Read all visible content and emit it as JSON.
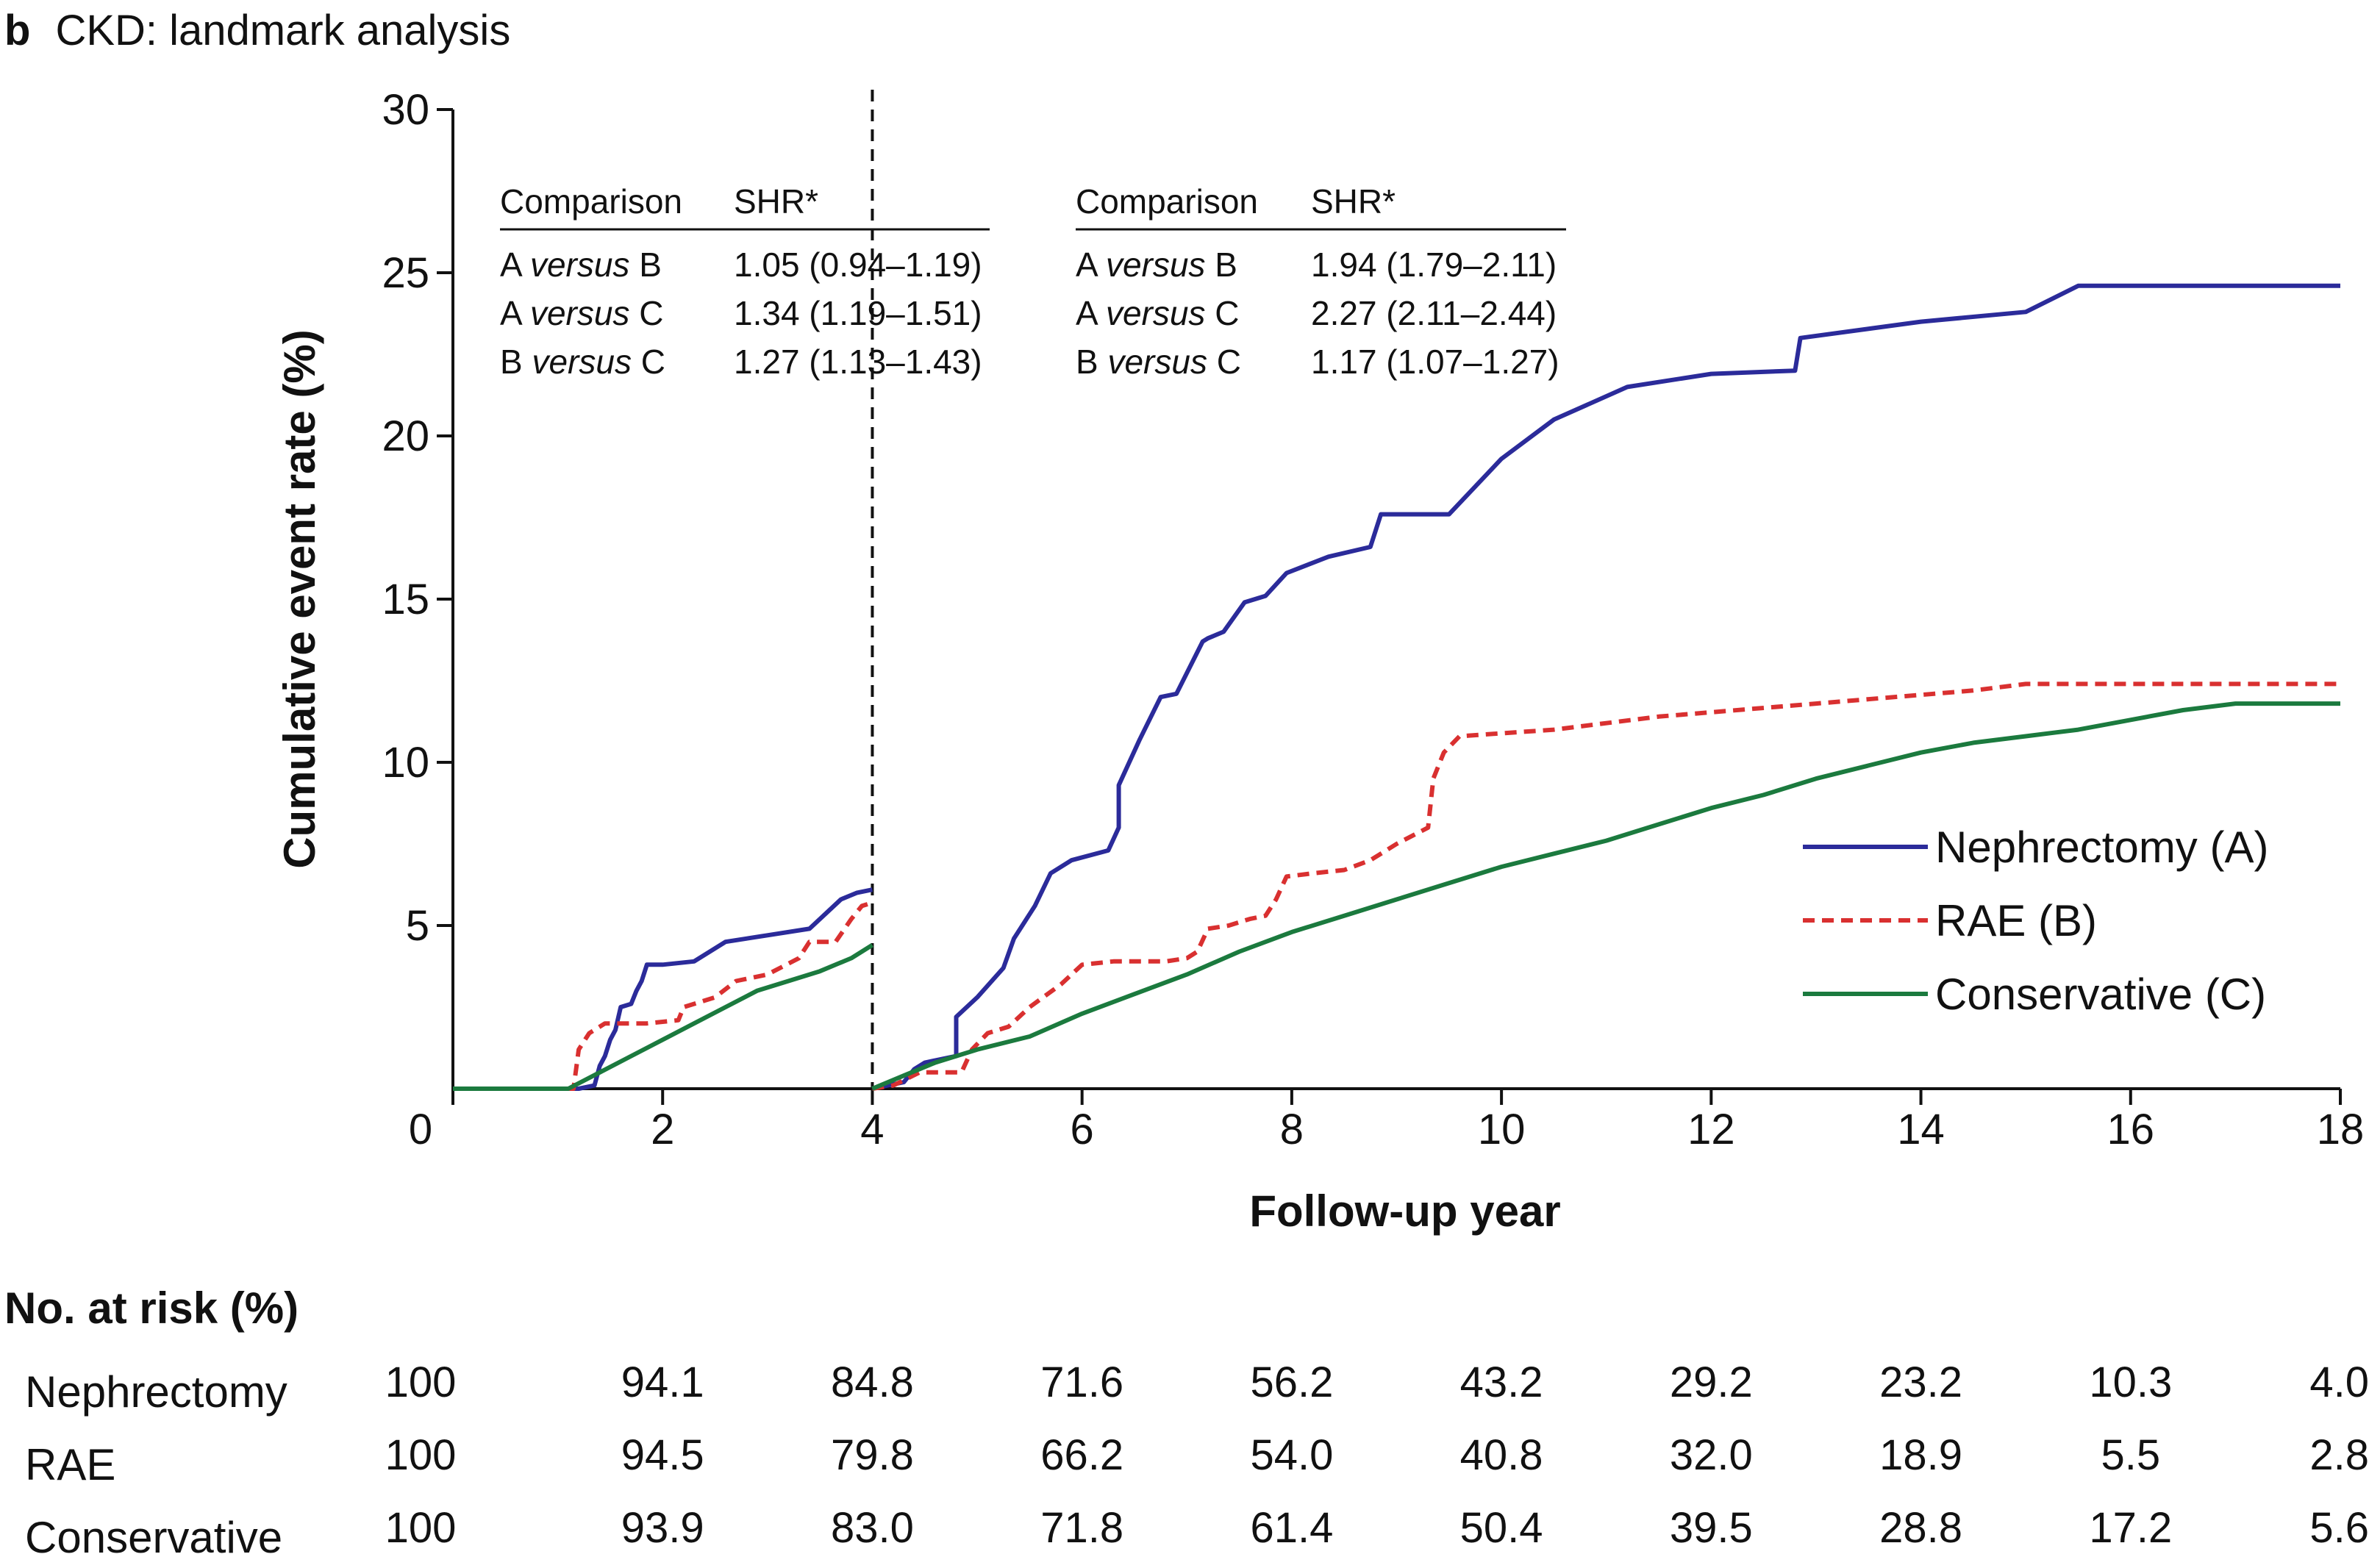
{
  "panel_letter": "b",
  "panel_title": "CKD: landmark analysis",
  "chart_data": {
    "type": "line",
    "title": "CKD: landmark analysis",
    "xlabel": "Follow-up year",
    "ylabel": "Cumulative event rate (%)",
    "xlim": [
      0,
      18
    ],
    "ylim": [
      0,
      30
    ],
    "x_ticks": [
      0,
      2,
      4,
      6,
      8,
      10,
      12,
      14,
      16,
      18
    ],
    "y_ticks": [
      5,
      10,
      15,
      20,
      25,
      30
    ],
    "landmark_x": 4,
    "grid": false,
    "legend_position": "right",
    "series": [
      {
        "name": "Nephrectomy (A)",
        "color": "#2b2b9a",
        "dash": "solid",
        "segments": [
          [
            [
              0,
              0
            ],
            [
              1.2,
              0
            ],
            [
              1.35,
              0.1
            ],
            [
              1.4,
              0.7
            ],
            [
              1.45,
              1.0
            ],
            [
              1.5,
              1.5
            ],
            [
              1.55,
              1.8
            ],
            [
              1.6,
              2.5
            ],
            [
              1.7,
              2.6
            ],
            [
              1.75,
              3.0
            ],
            [
              1.8,
              3.3
            ],
            [
              1.85,
              3.8
            ],
            [
              2.0,
              3.8
            ],
            [
              2.3,
              3.9
            ],
            [
              2.6,
              4.5
            ],
            [
              3.0,
              4.7
            ],
            [
              3.4,
              4.9
            ],
            [
              3.7,
              5.8
            ],
            [
              3.85,
              6.0
            ],
            [
              4.0,
              6.1
            ]
          ],
          [
            [
              4.0,
              0
            ],
            [
              4.3,
              0.2
            ],
            [
              4.4,
              0.6
            ],
            [
              4.5,
              0.8
            ],
            [
              4.8,
              1.0
            ],
            [
              4.8,
              2.2
            ],
            [
              5.0,
              2.8
            ],
            [
              5.25,
              3.7
            ],
            [
              5.35,
              4.6
            ],
            [
              5.55,
              5.6
            ],
            [
              5.7,
              6.6
            ],
            [
              5.9,
              7.0
            ],
            [
              6.25,
              7.3
            ],
            [
              6.35,
              8.0
            ],
            [
              6.35,
              9.3
            ],
            [
              6.55,
              10.7
            ],
            [
              6.75,
              12.0
            ],
            [
              6.9,
              12.1
            ],
            [
              7.15,
              13.7
            ],
            [
              7.2,
              13.8
            ],
            [
              7.35,
              14.0
            ],
            [
              7.55,
              14.9
            ],
            [
              7.75,
              15.1
            ],
            [
              7.95,
              15.8
            ],
            [
              8.35,
              16.3
            ],
            [
              8.75,
              16.6
            ],
            [
              8.85,
              17.6
            ],
            [
              9.0,
              17.6
            ],
            [
              9.5,
              17.6
            ],
            [
              10.0,
              19.3
            ],
            [
              10.5,
              20.5
            ],
            [
              11.2,
              21.5
            ],
            [
              12.0,
              21.9
            ],
            [
              12.8,
              22.0
            ],
            [
              12.85,
              23.0
            ],
            [
              14.0,
              23.5
            ],
            [
              15.0,
              23.8
            ],
            [
              15.5,
              24.6
            ],
            [
              16.0,
              24.6
            ],
            [
              18.0,
              24.6
            ]
          ]
        ]
      },
      {
        "name": "RAE (B)",
        "color": "#d93030",
        "dash": "dashed",
        "segments": [
          [
            [
              0,
              0
            ],
            [
              1.15,
              0
            ],
            [
              1.2,
              1.2
            ],
            [
              1.3,
              1.7
            ],
            [
              1.45,
              2.0
            ],
            [
              1.6,
              2.0
            ],
            [
              1.85,
              2.0
            ],
            [
              2.15,
              2.1
            ],
            [
              2.2,
              2.5
            ],
            [
              2.5,
              2.8
            ],
            [
              2.7,
              3.3
            ],
            [
              3.0,
              3.5
            ],
            [
              3.3,
              4.0
            ],
            [
              3.4,
              4.5
            ],
            [
              3.65,
              4.5
            ],
            [
              3.8,
              5.2
            ],
            [
              3.9,
              5.6
            ],
            [
              4.0,
              5.7
            ]
          ],
          [
            [
              4.0,
              0
            ],
            [
              4.2,
              0.1
            ],
            [
              4.45,
              0.5
            ],
            [
              4.85,
              0.5
            ],
            [
              4.95,
              1.2
            ],
            [
              5.1,
              1.7
            ],
            [
              5.3,
              1.9
            ],
            [
              5.5,
              2.5
            ],
            [
              5.8,
              3.2
            ],
            [
              6.0,
              3.8
            ],
            [
              6.3,
              3.9
            ],
            [
              6.8,
              3.9
            ],
            [
              7.0,
              4.0
            ],
            [
              7.1,
              4.2
            ],
            [
              7.2,
              4.9
            ],
            [
              7.4,
              5.0
            ],
            [
              7.6,
              5.2
            ],
            [
              7.75,
              5.3
            ],
            [
              7.85,
              5.8
            ],
            [
              7.95,
              6.5
            ],
            [
              8.2,
              6.6
            ],
            [
              8.5,
              6.7
            ],
            [
              8.75,
              7.0
            ],
            [
              9.0,
              7.5
            ],
            [
              9.3,
              8.0
            ],
            [
              9.35,
              9.5
            ],
            [
              9.45,
              10.3
            ],
            [
              9.6,
              10.8
            ],
            [
              10.5,
              11.0
            ],
            [
              11.5,
              11.4
            ],
            [
              13.0,
              11.8
            ],
            [
              14.5,
              12.2
            ],
            [
              15.0,
              12.4
            ],
            [
              18.0,
              12.4
            ]
          ]
        ]
      },
      {
        "name": "Conservative (C)",
        "color": "#1b7a3e",
        "dash": "solid",
        "segments": [
          [
            [
              0,
              0
            ],
            [
              1.1,
              0
            ],
            [
              1.4,
              0.5
            ],
            [
              1.7,
              1.0
            ],
            [
              2.0,
              1.5
            ],
            [
              2.3,
              2.0
            ],
            [
              2.6,
              2.5
            ],
            [
              2.9,
              3.0
            ],
            [
              3.2,
              3.3
            ],
            [
              3.5,
              3.6
            ],
            [
              3.8,
              4.0
            ],
            [
              4.0,
              4.4
            ]
          ],
          [
            [
              4.0,
              0
            ],
            [
              4.3,
              0.4
            ],
            [
              4.6,
              0.8
            ],
            [
              5.0,
              1.2
            ],
            [
              5.5,
              1.6
            ],
            [
              6.0,
              2.3
            ],
            [
              6.5,
              2.9
            ],
            [
              7.0,
              3.5
            ],
            [
              7.5,
              4.2
            ],
            [
              8.0,
              4.8
            ],
            [
              8.5,
              5.3
            ],
            [
              9.0,
              5.8
            ],
            [
              9.5,
              6.3
            ],
            [
              10.0,
              6.8
            ],
            [
              10.5,
              7.2
            ],
            [
              11.0,
              7.6
            ],
            [
              11.5,
              8.1
            ],
            [
              12.0,
              8.6
            ],
            [
              12.5,
              9.0
            ],
            [
              13.0,
              9.5
            ],
            [
              13.5,
              9.9
            ],
            [
              14.0,
              10.3
            ],
            [
              14.5,
              10.6
            ],
            [
              15.0,
              10.8
            ],
            [
              15.5,
              11.0
            ],
            [
              16.0,
              11.3
            ],
            [
              16.5,
              11.6
            ],
            [
              17.0,
              11.8
            ],
            [
              18.0,
              11.8
            ]
          ]
        ]
      }
    ],
    "shr_tables": [
      {
        "header": [
          "Comparison",
          "SHR*"
        ],
        "rows": [
          {
            "a": "A",
            "vs": "versus",
            "b": "B",
            "value": "1.05 (0.94–1.19)"
          },
          {
            "a": "A",
            "vs": "versus",
            "b": "C",
            "value": "1.34 (1.19–1.51)"
          },
          {
            "a": "B",
            "vs": "versus",
            "b": "C",
            "value": "1.27 (1.13–1.43)"
          }
        ]
      },
      {
        "header": [
          "Comparison",
          "SHR*"
        ],
        "rows": [
          {
            "a": "A",
            "vs": "versus",
            "b": "B",
            "value": "1.94 (1.79–2.11)"
          },
          {
            "a": "A",
            "vs": "versus",
            "b": "C",
            "value": "2.27 (2.11–2.44)"
          },
          {
            "a": "B",
            "vs": "versus",
            "b": "C",
            "value": "1.17 (1.07–1.27)"
          }
        ]
      }
    ],
    "risk_table": {
      "title": "No. at risk (%)",
      "rows": [
        {
          "label": "Nephrectomy",
          "values": [
            "100",
            "94.1",
            "84.8",
            "71.6",
            "56.2",
            "43.2",
            "29.2",
            "23.2",
            "10.3",
            "4.0"
          ]
        },
        {
          "label": "RAE",
          "values": [
            "100",
            "94.5",
            "79.8",
            "66.2",
            "54.0",
            "40.8",
            "32.0",
            "18.9",
            "5.5",
            "2.8"
          ]
        },
        {
          "label": "Conservative",
          "values": [
            "100",
            "93.9",
            "83.0",
            "71.8",
            "61.4",
            "50.4",
            "39.5",
            "28.8",
            "17.2",
            "5.6"
          ]
        }
      ]
    }
  }
}
